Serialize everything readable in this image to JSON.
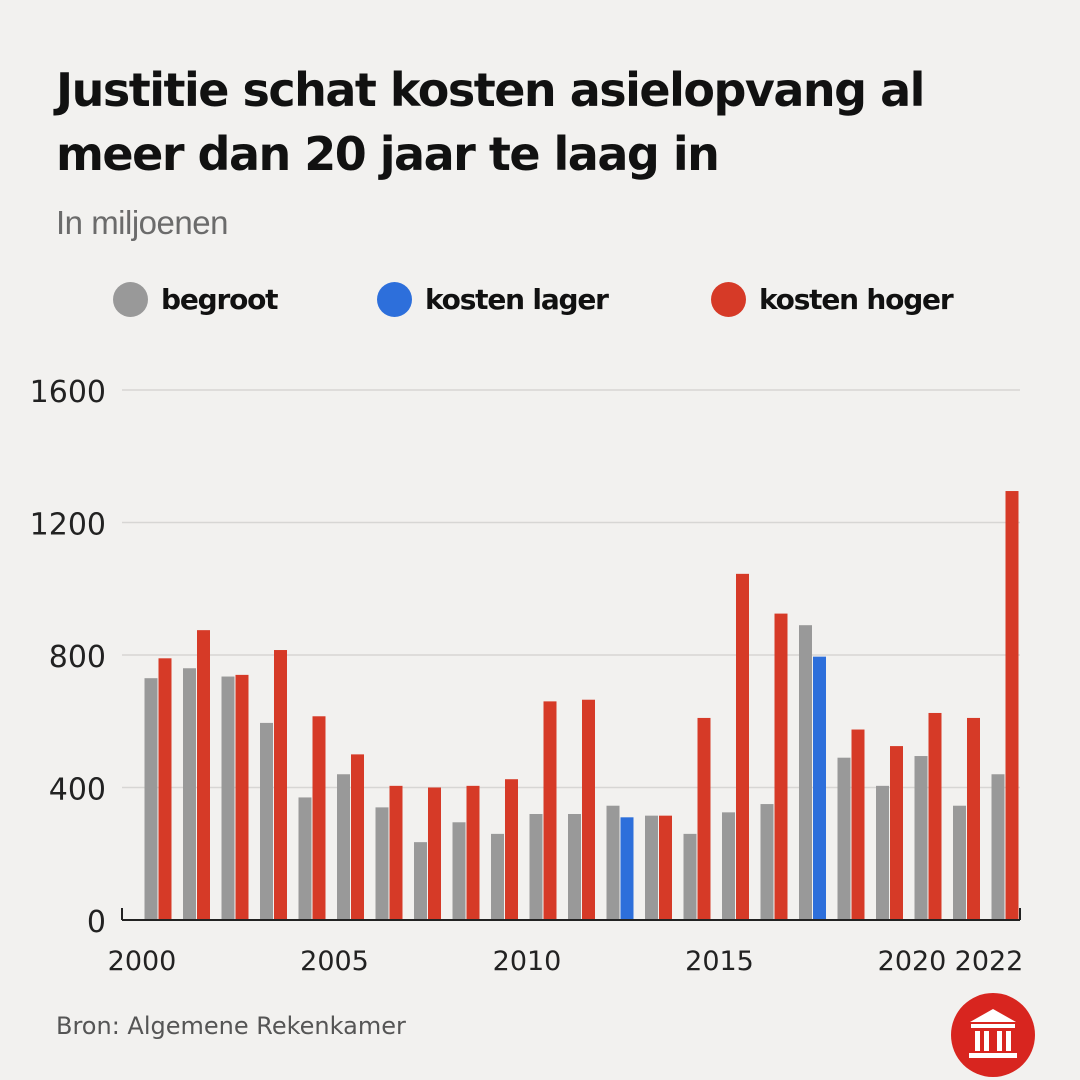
{
  "title": "Justitie schat kosten asielopvang al meer dan 20 jaar te laag in",
  "subtitle": "In miljoenen",
  "legend": [
    {
      "label": "begroot",
      "color": "#999999"
    },
    {
      "label": "kosten lager",
      "color": "#2d6fdb"
    },
    {
      "label": "kosten hoger",
      "color": "#d63a27"
    }
  ],
  "source": "Bron: Algemene Rekenkamer",
  "logo_icon": "courthouse-icon",
  "chart_data": {
    "type": "bar",
    "y_ticks": [
      0,
      400,
      800,
      1200,
      1600
    ],
    "ylim": [
      0,
      1600
    ],
    "grid": true,
    "legend_position": "top",
    "x_tick_labels": [
      "2000",
      "2005",
      "2010",
      "2015",
      "2020",
      "2022"
    ],
    "categories": [
      "2000",
      "2001",
      "2002",
      "2003",
      "2004",
      "2005",
      "2006",
      "2007",
      "2008",
      "2009",
      "2010",
      "2011",
      "2012",
      "2013",
      "2014",
      "2015",
      "2016",
      "2017",
      "2018",
      "2019",
      "2020",
      "2021",
      "2022"
    ],
    "series": [
      {
        "name": "begroot",
        "values": [
          730,
          760,
          735,
          595,
          370,
          440,
          340,
          235,
          295,
          260,
          320,
          320,
          345,
          315,
          260,
          325,
          350,
          890,
          490,
          405,
          495,
          345,
          440
        ]
      },
      {
        "name": "kosten",
        "values": [
          790,
          875,
          740,
          815,
          615,
          500,
          405,
          400,
          405,
          425,
          660,
          665,
          310,
          315,
          610,
          1045,
          925,
          795,
          575,
          525,
          625,
          610,
          1295
        ]
      }
    ],
    "outcome": [
      "hoger",
      "hoger",
      "hoger",
      "hoger",
      "hoger",
      "hoger",
      "hoger",
      "hoger",
      "hoger",
      "hoger",
      "hoger",
      "hoger",
      "lager",
      "hoger",
      "hoger",
      "hoger",
      "hoger",
      "lager",
      "hoger",
      "hoger",
      "hoger",
      "hoger",
      "hoger"
    ],
    "colors": {
      "begroot": "#999999",
      "lager": "#2d6fdb",
      "hoger": "#d63a27"
    }
  }
}
